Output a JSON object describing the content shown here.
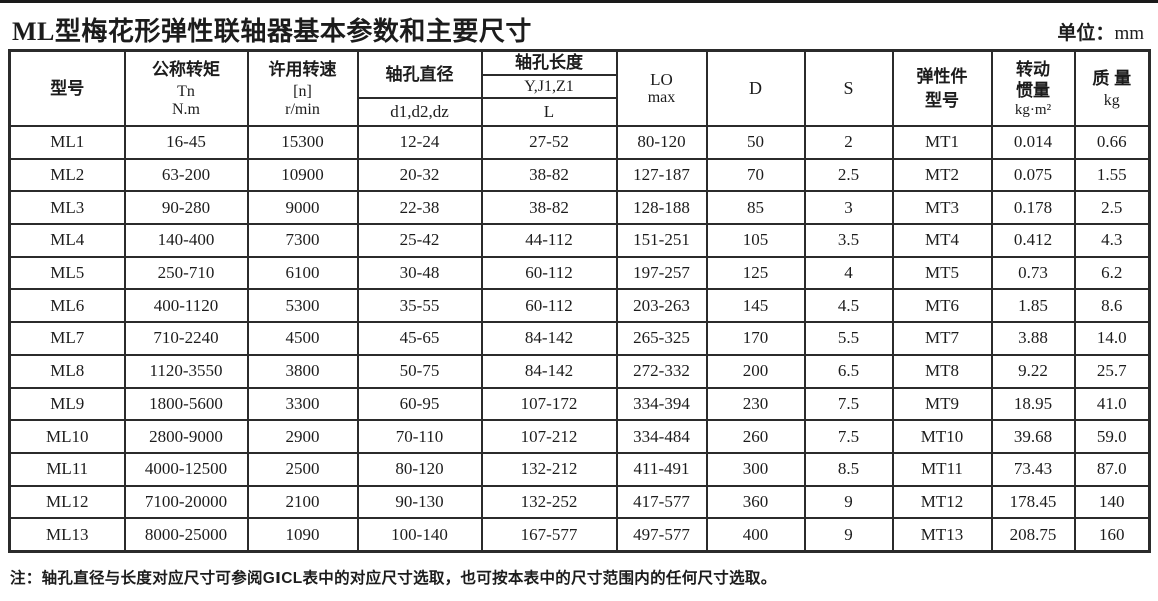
{
  "title": "ML型梅花形弹性联轴器基本参数和主要尺寸",
  "unit": {
    "label": "单位：",
    "value": "mm"
  },
  "table": {
    "header": {
      "model": "型号",
      "torque_cn": "公称转矩",
      "torque_sym": "Tn",
      "torque_unit": "N.m",
      "speed_cn": "许用转速",
      "speed_sym": "[n]",
      "speed_unit": "r/min",
      "bore_dia_cn": "轴孔直径",
      "bore_dia_sub": "d1,d2,dz",
      "bore_len_cn": "轴孔长度",
      "bore_len_sub1": "Y,J1,Z1",
      "bore_len_sub2": "L",
      "lo_sym": "LO",
      "lo_sub": "max",
      "d": "D",
      "s": "S",
      "elastic_cn1": "弹性件",
      "elastic_cn2": "型号",
      "inertia_cn1": "转动",
      "inertia_cn2": "惯量",
      "inertia_unit": "kg·m²",
      "mass_cn": "质 量",
      "mass_unit": "kg"
    },
    "rows": [
      [
        "ML1",
        "16-45",
        "15300",
        "12-24",
        "27-52",
        "80-120",
        "50",
        "2",
        "MT1",
        "0.014",
        "0.66"
      ],
      [
        "ML2",
        "63-200",
        "10900",
        "20-32",
        "38-82",
        "127-187",
        "70",
        "2.5",
        "MT2",
        "0.075",
        "1.55"
      ],
      [
        "ML3",
        "90-280",
        "9000",
        "22-38",
        "38-82",
        "128-188",
        "85",
        "3",
        "MT3",
        "0.178",
        "2.5"
      ],
      [
        "ML4",
        "140-400",
        "7300",
        "25-42",
        "44-112",
        "151-251",
        "105",
        "3.5",
        "MT4",
        "0.412",
        "4.3"
      ],
      [
        "ML5",
        "250-710",
        "6100",
        "30-48",
        "60-112",
        "197-257",
        "125",
        "4",
        "MT5",
        "0.73",
        "6.2"
      ],
      [
        "ML6",
        "400-1120",
        "5300",
        "35-55",
        "60-112",
        "203-263",
        "145",
        "4.5",
        "MT6",
        "1.85",
        "8.6"
      ],
      [
        "ML7",
        "710-2240",
        "4500",
        "45-65",
        "84-142",
        "265-325",
        "170",
        "5.5",
        "MT7",
        "3.88",
        "14.0"
      ],
      [
        "ML8",
        "1120-3550",
        "3800",
        "50-75",
        "84-142",
        "272-332",
        "200",
        "6.5",
        "MT8",
        "9.22",
        "25.7"
      ],
      [
        "ML9",
        "1800-5600",
        "3300",
        "60-95",
        "107-172",
        "334-394",
        "230",
        "7.5",
        "MT9",
        "18.95",
        "41.0"
      ],
      [
        "ML10",
        "2800-9000",
        "2900",
        "70-110",
        "107-212",
        "334-484",
        "260",
        "7.5",
        "MT10",
        "39.68",
        "59.0"
      ],
      [
        "ML11",
        "4000-12500",
        "2500",
        "80-120",
        "132-212",
        "411-491",
        "300",
        "8.5",
        "MT11",
        "73.43",
        "87.0"
      ],
      [
        "ML12",
        "7100-20000",
        "2100",
        "90-130",
        "132-252",
        "417-577",
        "360",
        "9",
        "MT12",
        "178.45",
        "140"
      ],
      [
        "ML13",
        "8000-25000",
        "1090",
        "100-140",
        "167-577",
        "497-577",
        "400",
        "9",
        "MT13",
        "208.75",
        "160"
      ]
    ]
  },
  "note": "注：轴孔直径与长度对应尺寸可参阅GⅠCL表中的对应尺寸选取，也可按本表中的尺寸范围内的任何尺寸选取。"
}
